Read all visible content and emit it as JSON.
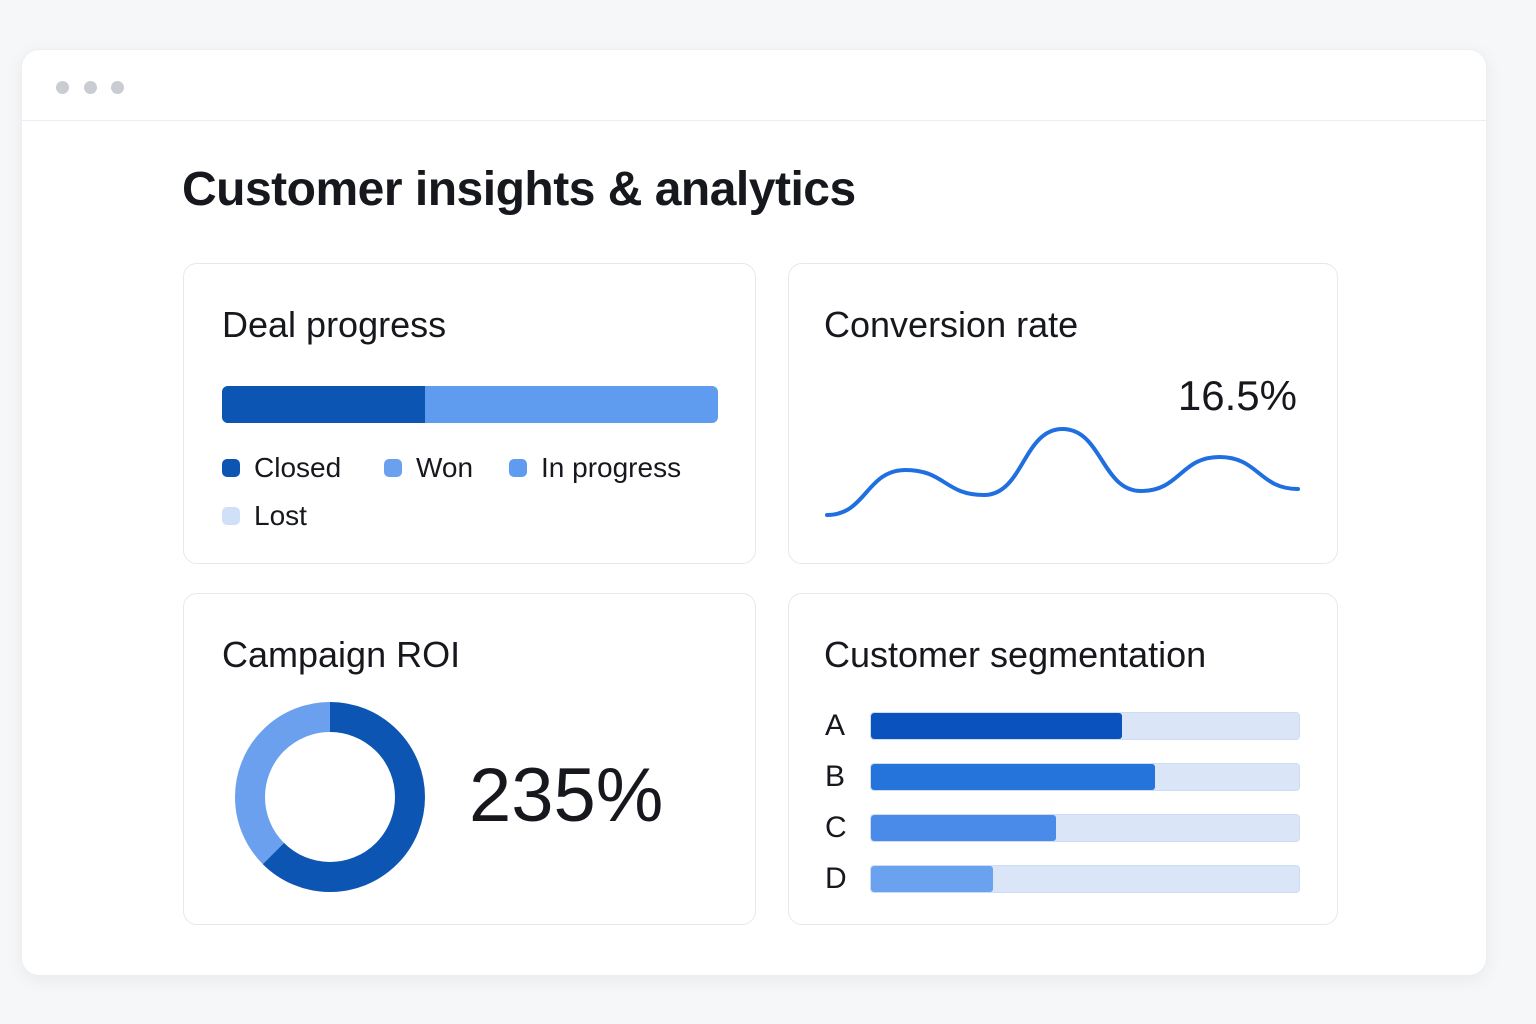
{
  "page_title": "Customer insights & analytics",
  "deal_progress": {
    "title": "Deal progress",
    "closed_percent": 41,
    "legend": [
      {
        "label": "Closed",
        "color": "#0d55b3"
      },
      {
        "label": "Won",
        "color": "#6aa0ee"
      },
      {
        "label": "In progress",
        "color": "#5f9bef"
      },
      {
        "label": "Lost",
        "color": "#cfe0f7"
      }
    ]
  },
  "conversion_rate": {
    "title": "Conversion rate",
    "value": "16.5%",
    "line_color": "#1f6fe0",
    "sparkline": [
      0,
      45,
      20,
      86,
      24,
      58,
      26
    ]
  },
  "campaign_roi": {
    "title": "Campaign ROI",
    "value": "235%",
    "donut_segments": [
      {
        "percent": 62.5,
        "color": "#0d55b3"
      },
      {
        "percent": 37.5,
        "color": "#6aa0ee"
      }
    ]
  },
  "segmentation": {
    "title": "Customer segmentation",
    "track_color": "#dae6f8",
    "rows": [
      {
        "label": "A",
        "percent": 58.6,
        "color": "#0a52bd"
      },
      {
        "label": "B",
        "percent": 66.3,
        "color": "#2474dc"
      },
      {
        "label": "C",
        "percent": 43.3,
        "color": "#4a8bea"
      },
      {
        "label": "D",
        "percent": 28.6,
        "color": "#6aa2ef"
      }
    ]
  }
}
